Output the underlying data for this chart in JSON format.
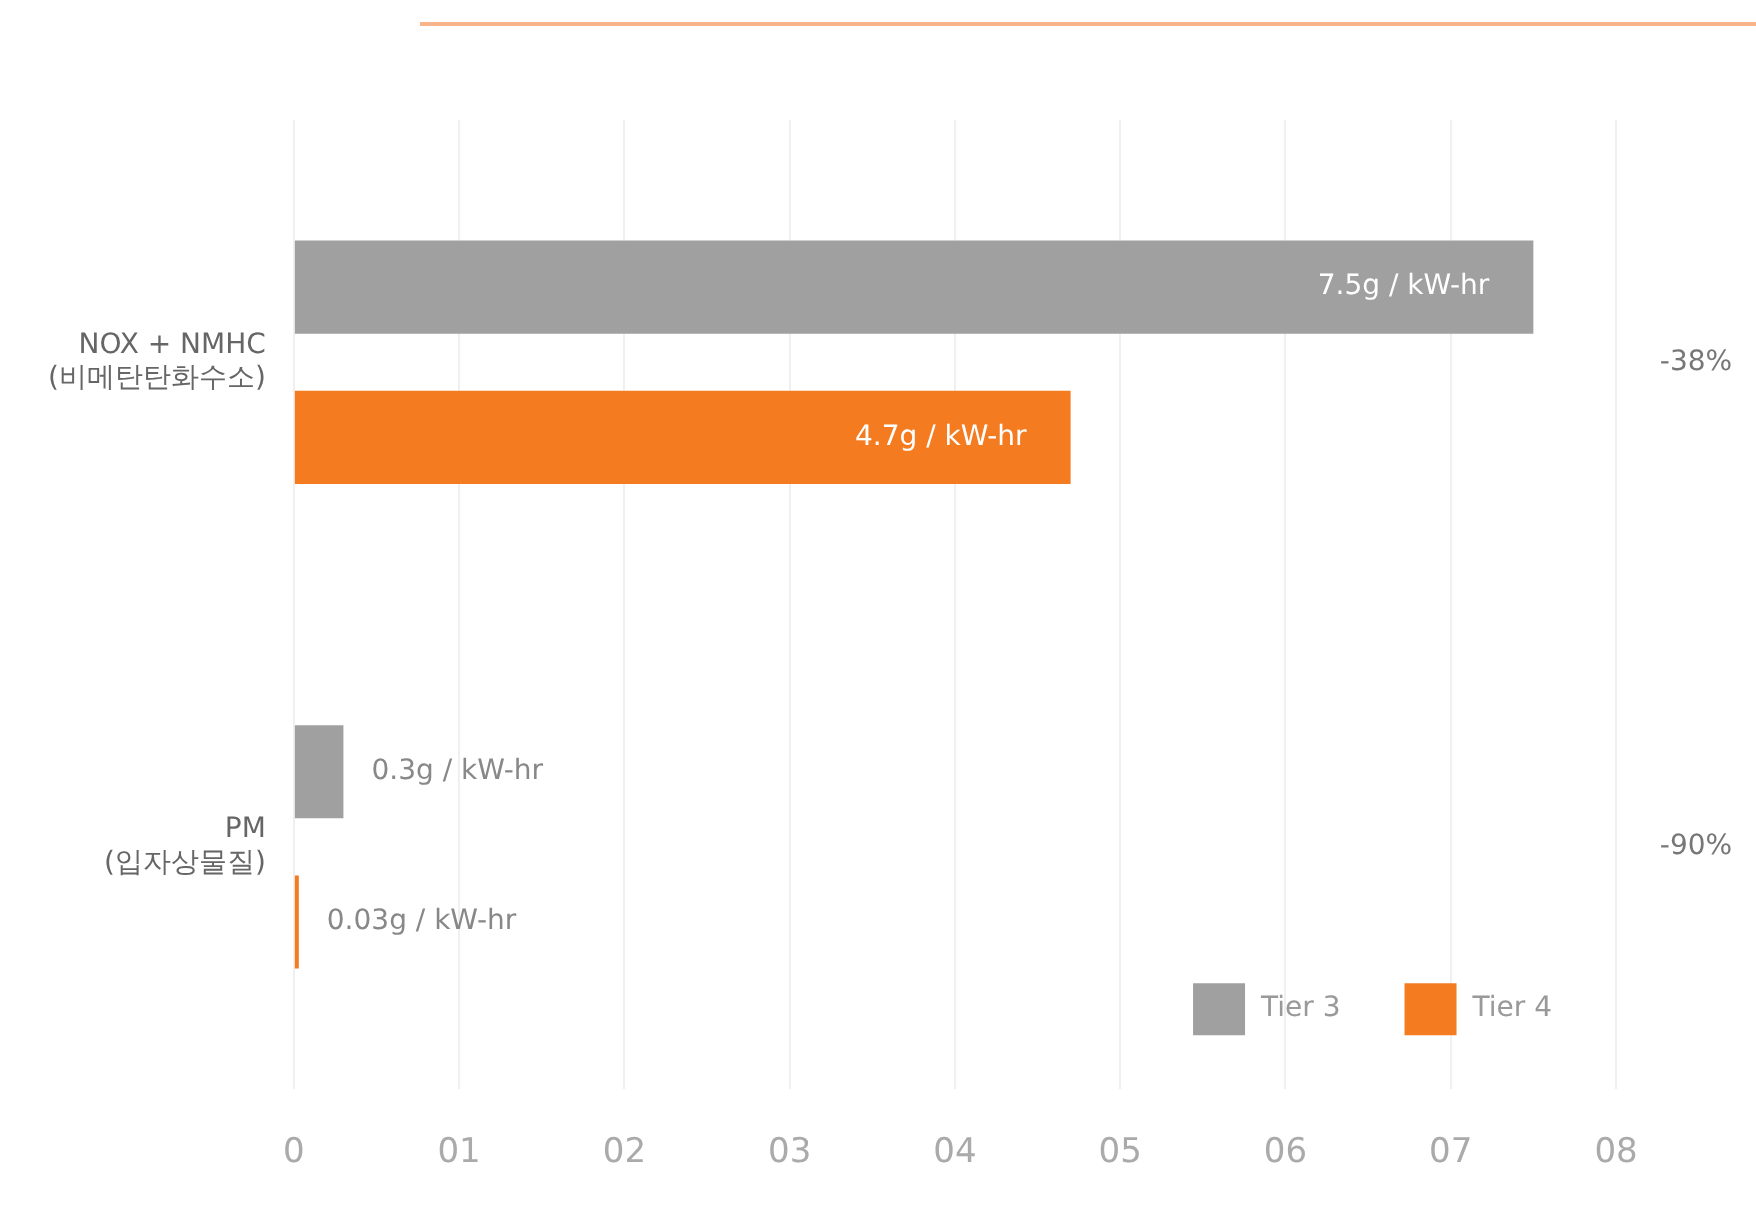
{
  "chart_data": {
    "type": "bar",
    "orientation": "horizontal",
    "categories": [
      "NOX + NMHC\n(비메탄탄화수소)",
      "PM\n(입자상물질)"
    ],
    "series": [
      {
        "name": "Tier 3",
        "color": "#a0a0a0",
        "values": [
          7.5,
          0.3
        ],
        "value_labels": [
          "7.5g / kW-hr",
          "0.3g / kW-hr"
        ]
      },
      {
        "name": "Tier 4",
        "color": "#f47b20",
        "values": [
          4.7,
          0.03
        ],
        "value_labels": [
          "4.7g / kW-hr",
          "0.03g / kW-hr"
        ]
      }
    ],
    "xlim": [
      0,
      8
    ],
    "xticks": [
      0,
      {
        "value": 1,
        "label": "01"
      },
      {
        "value": 2,
        "label": "02"
      },
      {
        "value": 3,
        "label": "03"
      },
      {
        "value": 4,
        "label": "04"
      },
      {
        "value": 5,
        "label": "05"
      },
      {
        "value": 6,
        "label": "06"
      },
      {
        "value": 7,
        "label": "07"
      },
      {
        "value": 8,
        "label": "08"
      }
    ],
    "annotations": [
      "-38%",
      "-90%"
    ],
    "grid": "x",
    "legend": "bottom right"
  }
}
